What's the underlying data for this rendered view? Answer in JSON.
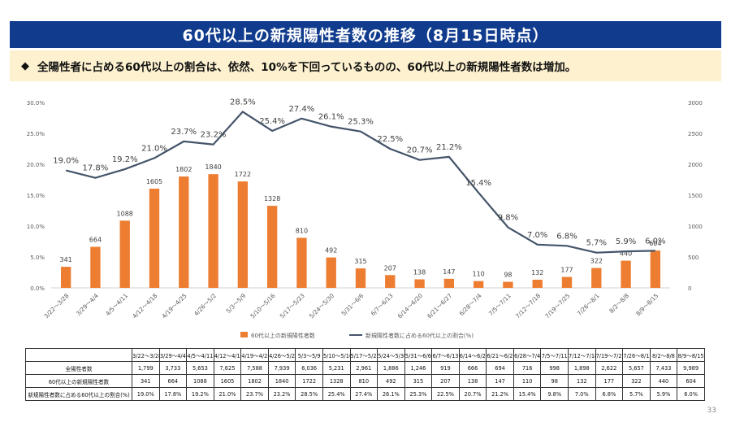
{
  "title": "60代以上の新規陽性者数の推移（8月15日時点）",
  "summary": {
    "bullet": "◆",
    "text": "全陽性者に占める60代以上の割合は、依然、10%を下回っているものの、60代以上の新規陽性者数は増加。"
  },
  "page_number": "33",
  "colors": {
    "bar": "#ed7d31",
    "line": "#44546a",
    "title_bg": "#113c8e",
    "summary_bg": "#fdf1cf"
  },
  "chart_data": {
    "type": "bar",
    "categories": [
      "3/22～3/28",
      "3/29～4/4",
      "4/5～4/11",
      "4/12～4/18",
      "4/19～4/25",
      "4/26～5/2",
      "5/3～5/9",
      "5/10～5/16",
      "5/17～5/23",
      "5/24～5/30",
      "5/31～6/6",
      "6/7～6/13",
      "6/14～6/20",
      "6/21～6/27",
      "6/28～7/4",
      "7/5～7/11",
      "7/12～7/18",
      "7/19～7/25",
      "7/26～8/1",
      "8/2～8/8",
      "8/9～8/15"
    ],
    "series": [
      {
        "name": "60代以上の新規陽性者数",
        "type": "bar",
        "axis": "right",
        "values": [
          341,
          664,
          1088,
          1605,
          1802,
          1840,
          1722,
          1328,
          810,
          492,
          315,
          207,
          138,
          147,
          110,
          98,
          132,
          177,
          322,
          440,
          604
        ],
        "labels": [
          "341",
          "664",
          "1088",
          "1605",
          "1802",
          "1840",
          "1722",
          "1328",
          "810",
          "492",
          "315",
          "207",
          "138",
          "147",
          "110",
          "98",
          "132",
          "177",
          "322",
          "440",
          "604"
        ]
      },
      {
        "name": "新規陽性者数に占める60代以上の割合(%)",
        "type": "line",
        "axis": "left",
        "values": [
          19.0,
          17.8,
          19.2,
          21.0,
          23.7,
          23.2,
          28.5,
          25.4,
          27.4,
          26.1,
          25.3,
          22.5,
          20.7,
          21.2,
          15.4,
          9.8,
          7.0,
          6.8,
          5.7,
          5.9,
          6.0
        ],
        "labels": [
          "19.0%",
          "17.8%",
          "19.2%",
          "21.0%",
          "23.7%",
          "23.2%",
          "28.5%",
          "25.4%",
          "27.4%",
          "26.1%",
          "25.3%",
          "22.5%",
          "20.7%",
          "21.2%",
          "15.4%",
          "9.8%",
          "7.0%",
          "6.8%",
          "5.7%",
          "5.9%",
          "6.0%"
        ]
      }
    ],
    "y_left": {
      "min": 0,
      "max": 30,
      "ticks": [
        "0.0%",
        "5.0%",
        "10.0%",
        "15.0%",
        "20.0%",
        "25.0%",
        "30.0%"
      ]
    },
    "y_right": {
      "min": 0,
      "max": 3000,
      "ticks": [
        "0",
        "500",
        "1000",
        "1500",
        "2000",
        "2500",
        "3000"
      ]
    },
    "legend_placement": "bottom",
    "grid": false
  },
  "table": {
    "headers": [
      "3/22～3/28",
      "3/29～4/4",
      "4/5～4/11",
      "4/12～4/18",
      "4/19～4/25",
      "4/26～5/2",
      "5/3～5/9",
      "5/10～5/16",
      "5/17～5/23",
      "5/24～5/30",
      "5/31～6/6",
      "6/7～6/13",
      "6/14～6/20",
      "6/21～6/27",
      "6/28～7/4",
      "7/5～7/11",
      "7/12～7/18",
      "7/19～7/25",
      "7/26～8/1",
      "8/2～8/8",
      "8/9～8/15"
    ],
    "rows": [
      {
        "label": "全陽性者数",
        "values": [
          "1,799",
          "3,733",
          "5,653",
          "7,625",
          "7,588",
          "7,939",
          "6,036",
          "5,231",
          "2,961",
          "1,886",
          "1,246",
          "919",
          "666",
          "694",
          "716",
          "998",
          "1,898",
          "2,622",
          "5,657",
          "7,433",
          "9,989"
        ]
      },
      {
        "label": "60代以上の新規陽性者数",
        "values": [
          "341",
          "664",
          "1088",
          "1605",
          "1802",
          "1840",
          "1722",
          "1328",
          "810",
          "492",
          "315",
          "207",
          "138",
          "147",
          "110",
          "98",
          "132",
          "177",
          "322",
          "440",
          "604"
        ]
      },
      {
        "label": "新規陽性者数に占める60代以上の割合(%)",
        "values": [
          "19.0%",
          "17.8%",
          "19.2%",
          "21.0%",
          "23.7%",
          "23.2%",
          "28.5%",
          "25.4%",
          "27.4%",
          "26.1%",
          "25.3%",
          "22.5%",
          "20.7%",
          "21.2%",
          "15.4%",
          "9.8%",
          "7.0%",
          "6.8%",
          "5.7%",
          "5.9%",
          "6.0%"
        ]
      }
    ]
  }
}
